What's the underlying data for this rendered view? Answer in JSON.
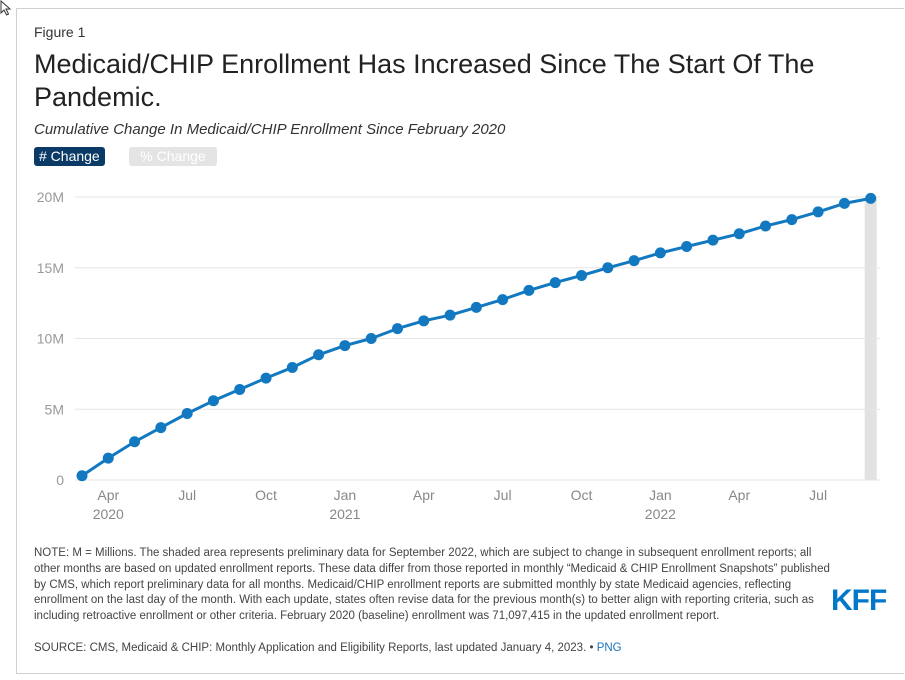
{
  "figure_label": "Figure 1",
  "title": "Medicaid/CHIP Enrollment Has Increased Since The Start Of The Pandemic.",
  "subtitle": "Cumulative Change In Medicaid/CHIP Enrollment Since February 2020",
  "toggles": {
    "active": "# Change",
    "inactive": "% Change"
  },
  "note": "NOTE: M = Millions. The shaded area represents preliminary data for September 2022, which are subject to change in subsequent enrollment reports; all other months are based on updated enrollment reports. These data differ from those reported in monthly “Medicaid & CHIP Enrollment Snapshots” published by CMS, which report preliminary data for all months. Medicaid/CHIP enrollment reports are submitted monthly by state Medicaid agencies, reflecting enrollment on the last day of the month. With each update, states often revise data for the previous month(s) to better align with reporting criteria, such as including retroactive enrollment or other criteria. February 2020 (baseline) enrollment was 71,097,415 in the updated enrollment report.",
  "source": "SOURCE: CMS, Medicaid & CHIP: Monthly Application and Eligibility Reports, last updated January 4, 2023. •",
  "source_link": "PNG",
  "logo": "KFF",
  "colors": {
    "line": "#1279c1",
    "shade": "#e2e2e2",
    "active_toggle": "#0b3a66",
    "logo": "#0077c8"
  },
  "chart_data": {
    "type": "line",
    "x": [
      "2020-03",
      "2020-04",
      "2020-05",
      "2020-06",
      "2020-07",
      "2020-08",
      "2020-09",
      "2020-10",
      "2020-11",
      "2020-12",
      "2021-01",
      "2021-02",
      "2021-03",
      "2021-04",
      "2021-05",
      "2021-06",
      "2021-07",
      "2021-08",
      "2021-09",
      "2021-10",
      "2021-11",
      "2021-12",
      "2022-01",
      "2022-02",
      "2022-03",
      "2022-04",
      "2022-05",
      "2022-06",
      "2022-07",
      "2022-08",
      "2022-09"
    ],
    "values": [
      0.3,
      1.55,
      2.7,
      3.7,
      4.7,
      5.6,
      6.4,
      7.2,
      7.95,
      8.85,
      9.5,
      10.0,
      10.7,
      11.25,
      11.65,
      12.2,
      12.75,
      13.4,
      13.95,
      14.45,
      15.0,
      15.5,
      16.05,
      16.5,
      16.95,
      17.4,
      17.95,
      18.4,
      18.95,
      19.55,
      19.9
    ],
    "series_unit": "M",
    "ylim": [
      0,
      20
    ],
    "y_ticks": [
      0,
      5,
      10,
      15,
      20
    ],
    "y_tick_labels": [
      "0",
      "5M",
      "10M",
      "15M",
      "20M"
    ],
    "x_tick_labels": [
      {
        "month": "2020-04",
        "label": "Apr",
        "year": "2020"
      },
      {
        "month": "2020-07",
        "label": "Jul",
        "year": ""
      },
      {
        "month": "2020-10",
        "label": "Oct",
        "year": ""
      },
      {
        "month": "2021-01",
        "label": "Jan",
        "year": "2021"
      },
      {
        "month": "2021-04",
        "label": "Apr",
        "year": ""
      },
      {
        "month": "2021-07",
        "label": "Jul",
        "year": ""
      },
      {
        "month": "2021-10",
        "label": "Oct",
        "year": ""
      },
      {
        "month": "2022-01",
        "label": "Jan",
        "year": "2022"
      },
      {
        "month": "2022-04",
        "label": "Apr",
        "year": ""
      },
      {
        "month": "2022-07",
        "label": "Jul",
        "year": ""
      }
    ],
    "shaded_month": "2022-09",
    "grid": true
  }
}
